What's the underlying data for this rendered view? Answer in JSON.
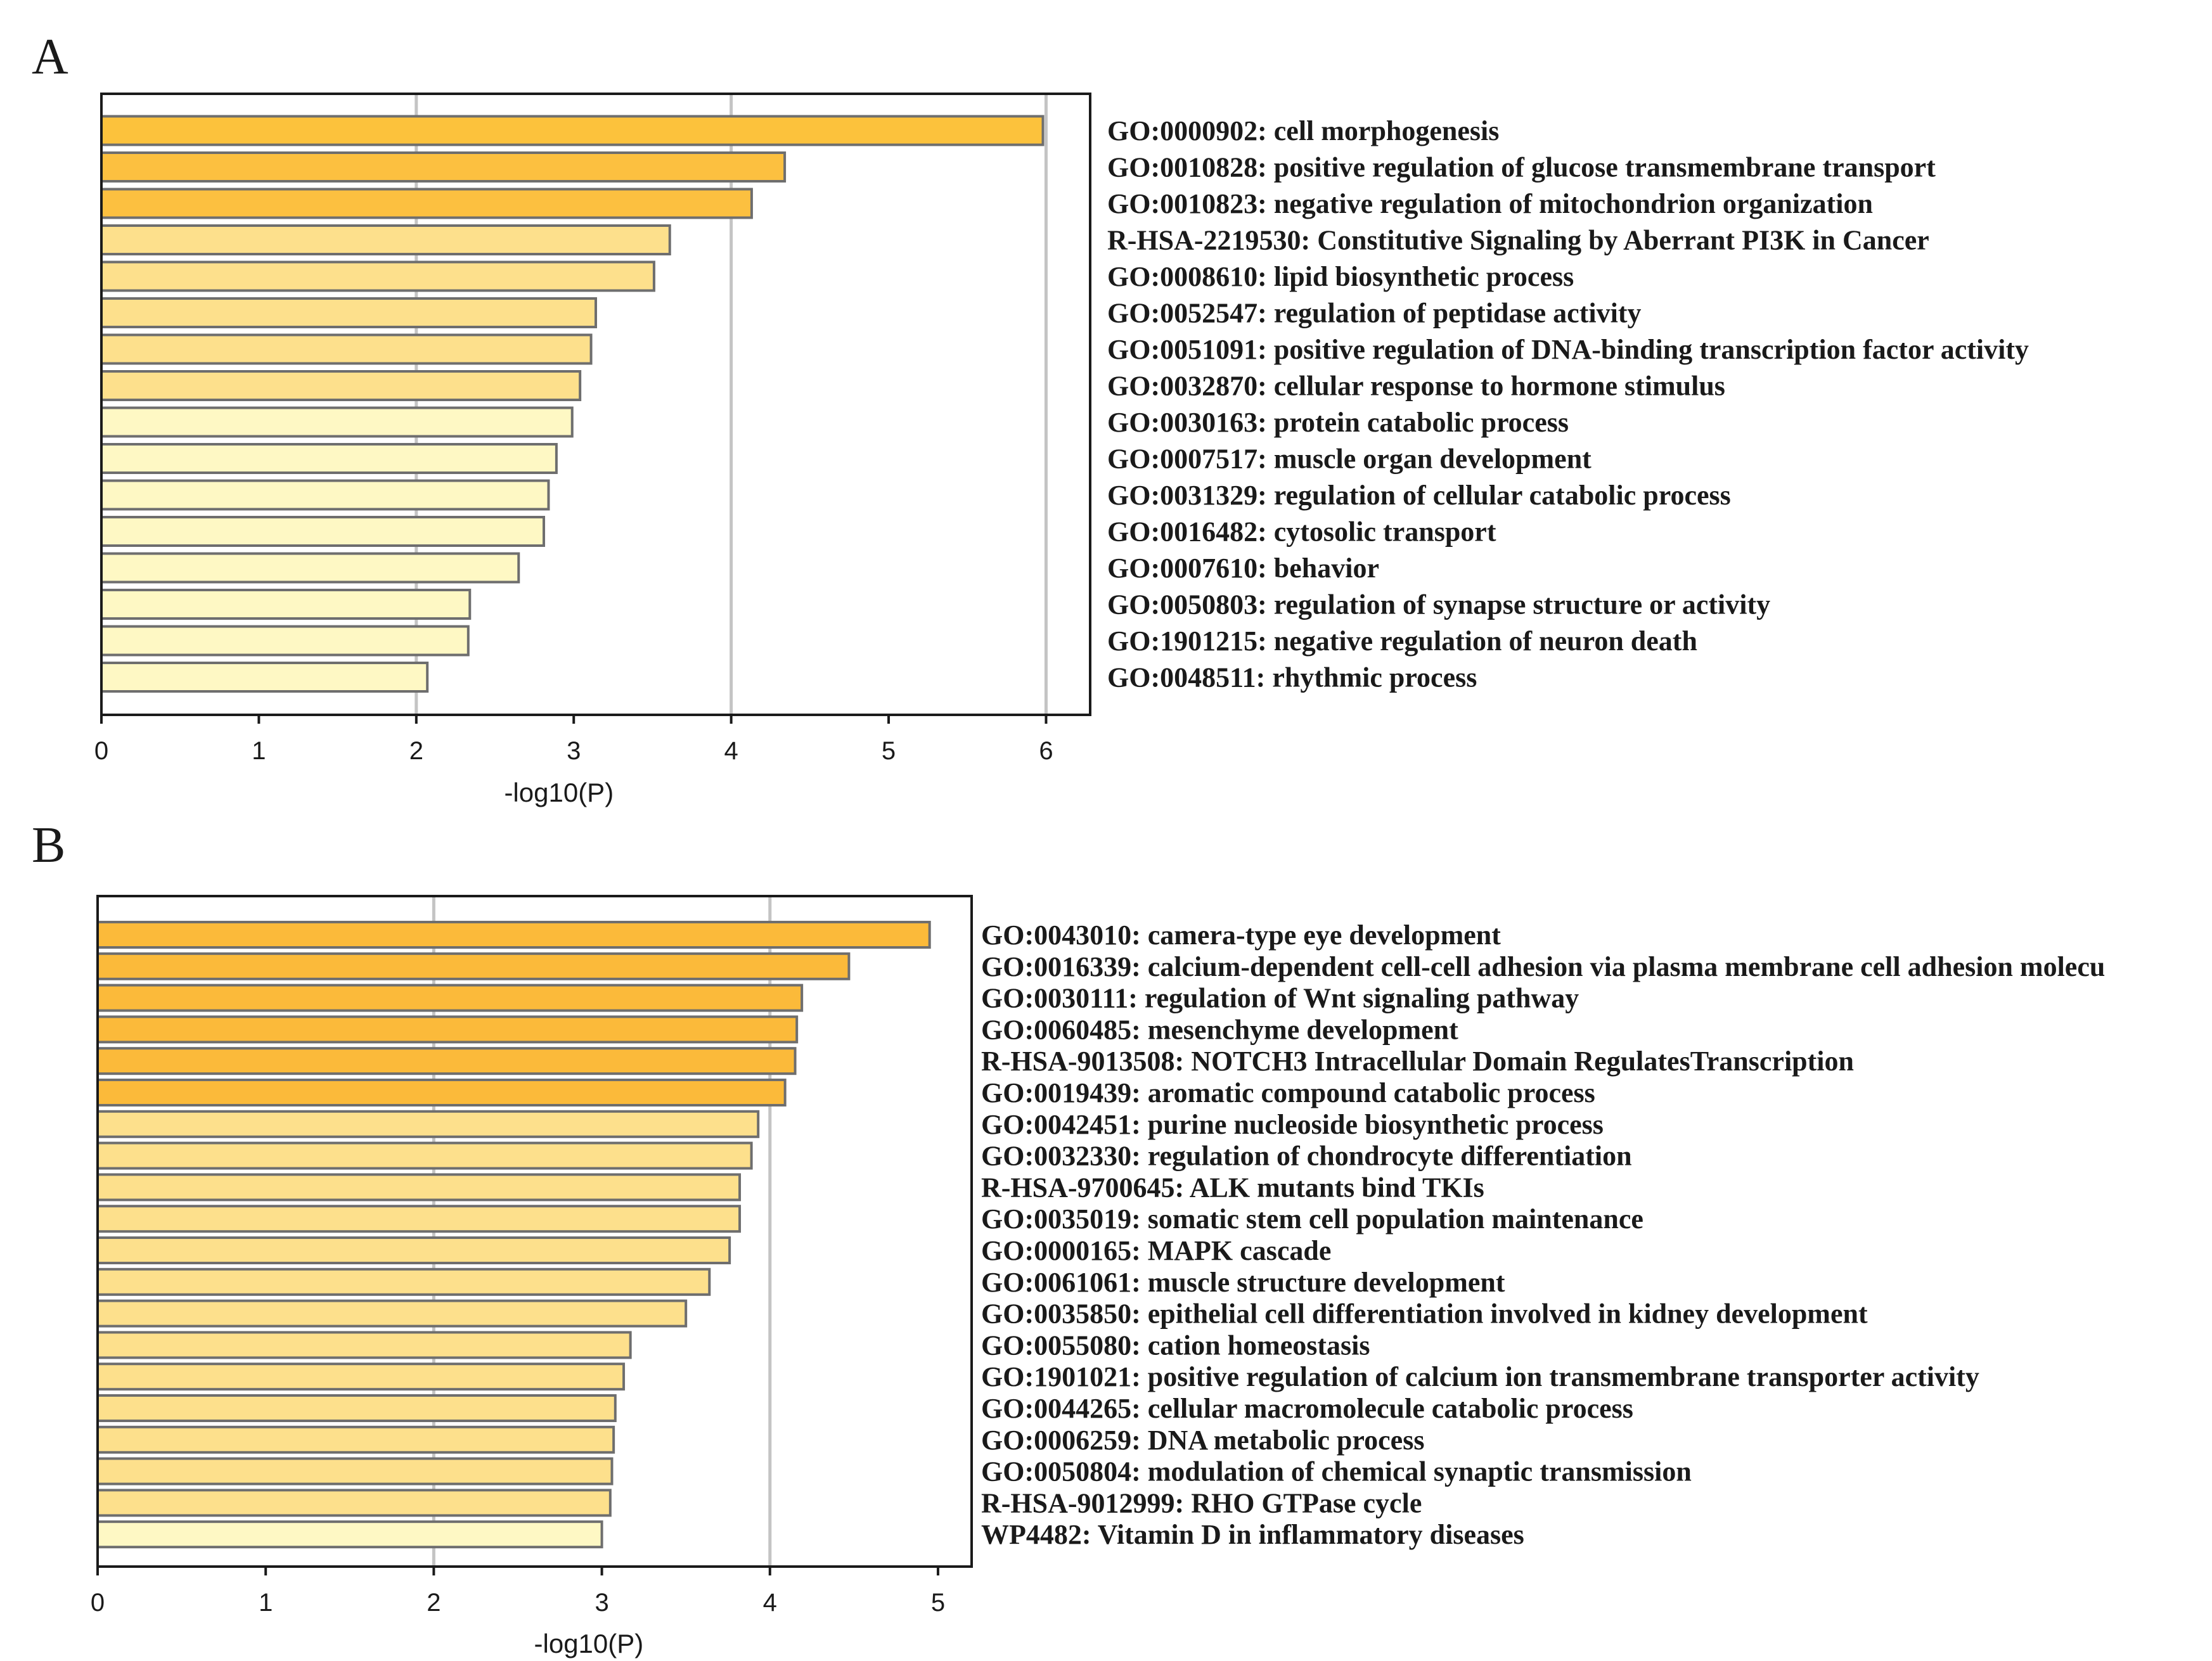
{
  "chart_data": [
    {
      "type": "bar",
      "orientation": "horizontal",
      "panel": "A",
      "xlabel": "-log10(P)",
      "xlim": [
        0,
        6.28
      ],
      "xticks": [
        0,
        1,
        2,
        3,
        4,
        5,
        6
      ],
      "gridlines": [
        2,
        4,
        6
      ],
      "categories": [
        "GO:0000902: cell morphogenesis",
        "GO:0010828: positive regulation of glucose transmembrane transport",
        "GO:0010823: negative regulation of mitochondrion organization",
        "R-HSA-2219530: Constitutive Signaling by Aberrant PI3K in Cancer",
        "GO:0008610: lipid biosynthetic process",
        "GO:0052547: regulation of peptidase activity",
        "GO:0051091: positive regulation of DNA-binding transcription factor activity",
        "GO:0032870: cellular response to hormone stimulus",
        "GO:0030163: protein catabolic process",
        "GO:0007517: muscle organ development",
        "GO:0031329: regulation of cellular catabolic process",
        "GO:0016482: cytosolic transport",
        "GO:0007610: behavior",
        "GO:0050803: regulation of synapse structure or activity",
        "GO:1901215: negative regulation of neuron death",
        "GO:0048511: rhythmic process"
      ],
      "values": [
        5.98,
        4.34,
        4.13,
        3.61,
        3.51,
        3.14,
        3.11,
        3.04,
        2.99,
        2.89,
        2.84,
        2.81,
        2.65,
        2.34,
        2.33,
        2.07
      ],
      "colors": [
        "#fcc23c",
        "#fcc040",
        "#fcc040",
        "#fde08c",
        "#fde08c",
        "#fde08c",
        "#fde08c",
        "#fde08c",
        "#fef8c4",
        "#fef8c4",
        "#fef8c4",
        "#fef8c4",
        "#fef8c4",
        "#fef8c4",
        "#fef8c4",
        "#fef8c4"
      ]
    },
    {
      "type": "bar",
      "orientation": "horizontal",
      "panel": "B",
      "xlabel": "-log10(P)",
      "xlim": [
        0,
        5.2
      ],
      "xticks": [
        0,
        1,
        2,
        3,
        4,
        5
      ],
      "gridlines": [
        2,
        4
      ],
      "categories": [
        "GO:0043010: camera-type eye development",
        "GO:0016339: calcium-dependent cell-cell adhesion via plasma membrane cell adhesion molecu",
        "GO:0030111: regulation of Wnt signaling pathway",
        "GO:0060485: mesenchyme development",
        "R-HSA-9013508: NOTCH3 Intracellular Domain RegulatesTranscription",
        "GO:0019439: aromatic compound catabolic process",
        "GO:0042451: purine nucleoside biosynthetic process",
        "GO:0032330: regulation of chondrocyte differentiation",
        "R-HSA-9700645: ALK mutants bind TKIs",
        "GO:0035019: somatic stem cell population maintenance",
        "GO:0000165: MAPK cascade",
        "GO:0061061: muscle structure development",
        "GO:0035850: epithelial cell differentiation involved in kidney development",
        "GO:0055080: cation homeostasis",
        "GO:1901021: positive regulation of calcium ion transmembrane transporter activity",
        "GO:0044265: cellular macromolecule catabolic process",
        "GO:0006259: DNA metabolic process",
        "GO:0050804: modulation of chemical synaptic transmission",
        "R-HSA-9012999: RHO GTPase cycle",
        "WP4482: Vitamin D in inflammatory diseases"
      ],
      "values": [
        4.95,
        4.47,
        4.19,
        4.16,
        4.15,
        4.09,
        3.93,
        3.89,
        3.82,
        3.82,
        3.76,
        3.64,
        3.5,
        3.17,
        3.13,
        3.08,
        3.07,
        3.06,
        3.05,
        3.0
      ],
      "colors": [
        "#fbba3a",
        "#fbba3a",
        "#fbba3a",
        "#fbba3a",
        "#fbba3a",
        "#fbba3a",
        "#fde08c",
        "#fde08c",
        "#fde08c",
        "#fde08c",
        "#fde08c",
        "#fde08c",
        "#fde08c",
        "#fde08c",
        "#fde08c",
        "#fde08c",
        "#fde08c",
        "#fde08c",
        "#fde08c",
        "#fef8c4"
      ]
    }
  ]
}
